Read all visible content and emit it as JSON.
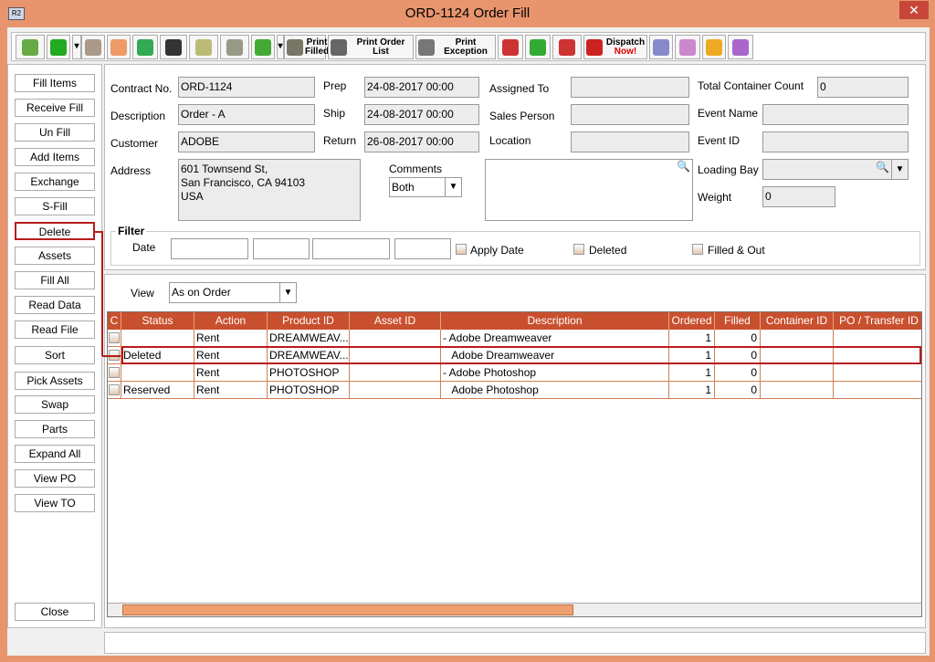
{
  "window": {
    "title": "ORD-1124 Order Fill",
    "logo": "R2",
    "close": "✕"
  },
  "toolbar": [
    {
      "icon": "binoculars-icon"
    },
    {
      "icon": "pick-icon"
    },
    {
      "icon": "refresh-icon"
    },
    {
      "icon": "edit-icon"
    },
    {
      "icon": "funnel-down-icon"
    },
    {
      "icon": "zoom-icon"
    },
    {
      "icon": "filter-check-icon"
    },
    {
      "icon": "documents-icon"
    },
    {
      "icon": "print-stack-icon"
    },
    {
      "icon": "print-filled-icon",
      "label": "Print Filled"
    },
    {
      "icon": "print-order-list-icon",
      "label": "Print Order List"
    },
    {
      "icon": "print-exception-icon",
      "label": "Print Exception"
    },
    {
      "icon": "scanner-icon"
    },
    {
      "icon": "plus-minus-icon"
    },
    {
      "icon": "scanner2-icon"
    },
    {
      "icon": "dispatch-icon",
      "label": "Dispatch",
      "label2": "Now!"
    },
    {
      "icon": "truck-doc-icon"
    },
    {
      "icon": "clock-icon"
    },
    {
      "icon": "warning-doc-icon"
    },
    {
      "icon": "grid-select-icon"
    }
  ],
  "left_buttons": [
    "Fill Items",
    "Receive Fill",
    "Un Fill",
    "Add Items",
    "Exchange",
    "S-Fill",
    "Delete",
    "Assets",
    "Fill  All",
    "Read Data",
    "Read File",
    "Sort",
    "Pick Assets",
    "Swap",
    "Parts",
    "Expand All",
    "View PO",
    "View TO"
  ],
  "close_label": "Close",
  "form": {
    "contract_label": "Contract No.",
    "contract": "ORD-1124",
    "desc_label": "Description",
    "desc": "Order - A",
    "customer_label": "Customer",
    "customer": "ADOBE",
    "address_label": "Address",
    "address": [
      "601 Townsend St,",
      "San Francisco, CA 94103",
      "USA"
    ],
    "prep_label": "Prep",
    "prep": "24-08-2017 00:00",
    "ship_label": "Ship",
    "ship": "24-08-2017 00:00",
    "return_label": "Return",
    "return": "26-08-2017 00:00",
    "assigned_label": "Assigned To",
    "sales_label": "Sales Person",
    "location_label": "Location",
    "comments_label": "Comments",
    "comments_select": "Both",
    "tcc_label": "Total Container Count",
    "tcc": "0",
    "event_name_label": "Event Name",
    "event_id_label": "Event ID",
    "loading_bay_label": "Loading Bay",
    "weight_label": "Weight",
    "weight": "0",
    "filter_label": "Filter",
    "date_label": "Date",
    "apply_date": "Apply Date",
    "deleted": "Deleted",
    "filled_out": "Filled & Out"
  },
  "view": {
    "label": "View",
    "value": "As on Order"
  },
  "table": {
    "columns": [
      "C",
      "Status",
      "Action",
      "Product ID",
      "Asset ID",
      "Description",
      "Ordered",
      "Filled",
      "Container ID",
      "PO / Transfer ID"
    ],
    "rows": [
      [
        "",
        "",
        "Rent",
        "DREAMWEAV...",
        "",
        "- Adobe Dreamweaver",
        "1",
        "0",
        "",
        ""
      ],
      [
        "",
        "Deleted",
        "Rent",
        "DREAMWEAV...",
        "",
        "   Adobe Dreamweaver",
        "1",
        "0",
        "",
        ""
      ],
      [
        "",
        "",
        "Rent",
        "PHOTOSHOP",
        "",
        "- Adobe Photoshop",
        "1",
        "0",
        "",
        ""
      ],
      [
        "",
        "Reserved",
        "Rent",
        "PHOTOSHOP",
        "",
        "   Adobe Photoshop",
        "1",
        "0",
        "",
        ""
      ]
    ]
  },
  "colors": {
    "header": "#c9502e",
    "frame": "#e8956d",
    "highlight": "#b71c1c"
  }
}
